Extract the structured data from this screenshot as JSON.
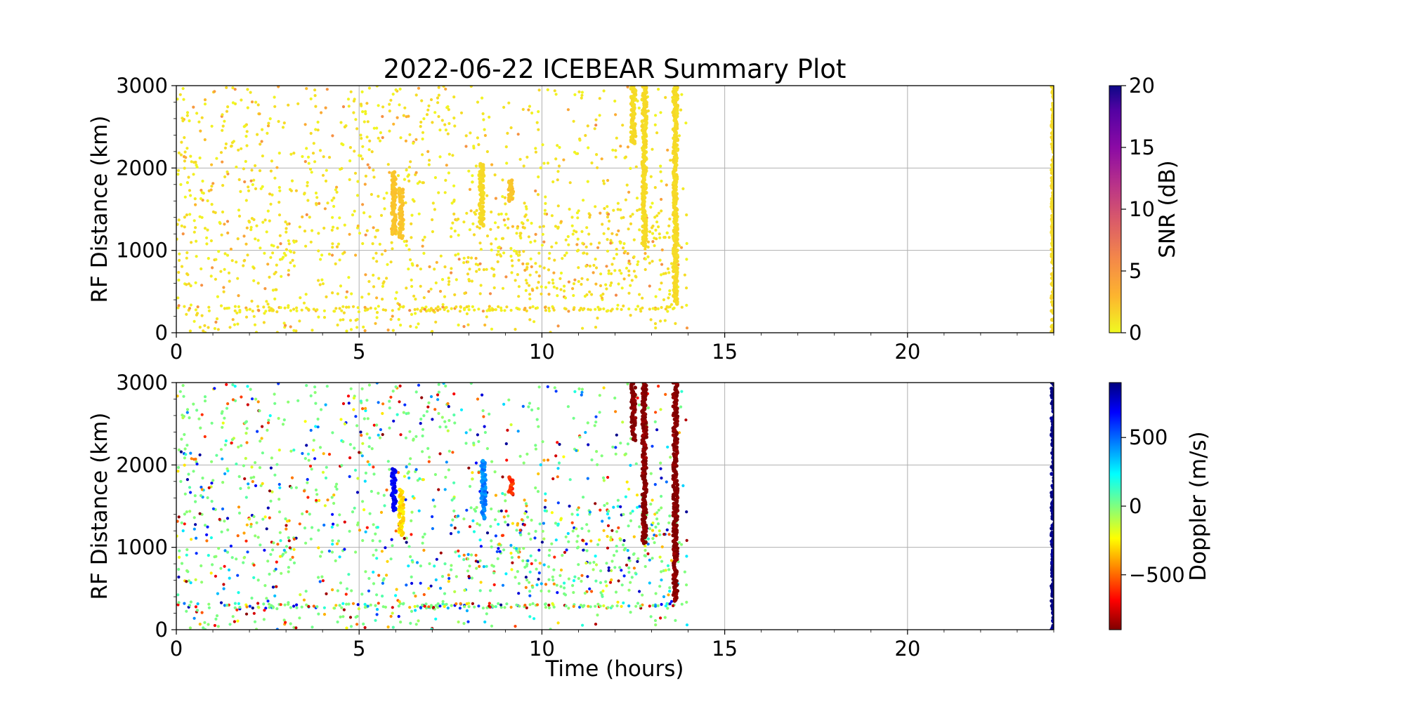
{
  "chart_data": [
    {
      "type": "scatter",
      "title": "2022-06-22 ICEBEAR Summary Plot",
      "xlabel": "",
      "ylabel": "RF Distance (km)",
      "xlim": [
        0,
        24
      ],
      "ylim": [
        0,
        3000
      ],
      "xticks": [
        "0",
        "5",
        "10",
        "15",
        "20"
      ],
      "yticks": [
        "0",
        "1000",
        "2000",
        "3000"
      ],
      "grid": true,
      "colorbar": {
        "label": "SNR (dB)",
        "range": [
          0,
          20
        ],
        "ticks": [
          "0",
          "5",
          "10",
          "15",
          "20"
        ],
        "colormap": "plasma_r"
      },
      "features": [
        {
          "x": 5.95,
          "y_range": [
            1200,
            1950
          ],
          "snr": 2
        },
        {
          "x": 6.15,
          "y_range": [
            1150,
            1750
          ],
          "snr": 2
        },
        {
          "x": 8.35,
          "y_range": [
            1300,
            2050
          ],
          "snr": 1
        },
        {
          "x": 9.15,
          "y_range": [
            1600,
            1850
          ],
          "snr": 2
        },
        {
          "x": 12.5,
          "y_range": [
            2300,
            3000
          ],
          "snr": 1
        },
        {
          "x": 12.8,
          "y_range": [
            1050,
            3000
          ],
          "snr": 1
        },
        {
          "x": 13.65,
          "y_range": [
            350,
            3000
          ],
          "snr": 1
        },
        {
          "x": 24.0,
          "y_range": [
            0,
            3000
          ],
          "snr": 1
        }
      ],
      "time_coverage_hours": [
        0,
        14
      ]
    },
    {
      "type": "scatter",
      "title": "",
      "xlabel": "Time (hours)",
      "ylabel": "RF Distance (km)",
      "xlim": [
        0,
        24
      ],
      "ylim": [
        0,
        3000
      ],
      "xticks": [
        "0",
        "5",
        "10",
        "15",
        "20"
      ],
      "yticks": [
        "0",
        "1000",
        "2000",
        "3000"
      ],
      "grid": true,
      "colorbar": {
        "label": "Doppler (m/s)",
        "range": [
          -900,
          900
        ],
        "ticks": [
          "−500",
          "0",
          "500"
        ],
        "colormap": "jet_r"
      },
      "features": [
        {
          "x": 5.95,
          "y_range": [
            1450,
            1950
          ],
          "doppler": 700
        },
        {
          "x": 6.15,
          "y_range": [
            1150,
            1700
          ],
          "doppler": -300
        },
        {
          "x": 8.4,
          "y_range": [
            1350,
            2050
          ],
          "doppler": 450
        },
        {
          "x": 9.15,
          "y_range": [
            1650,
            1850
          ],
          "doppler": -600
        },
        {
          "x": 12.5,
          "y_range": [
            2300,
            3000
          ],
          "doppler": -900
        },
        {
          "x": 12.8,
          "y_range": [
            1050,
            3000
          ],
          "doppler": -900
        },
        {
          "x": 13.65,
          "y_range": [
            350,
            3000
          ],
          "doppler": -900
        },
        {
          "x": 24.0,
          "y_range": [
            0,
            3000
          ],
          "doppler": 900
        }
      ],
      "time_coverage_hours": [
        0,
        14
      ]
    }
  ]
}
